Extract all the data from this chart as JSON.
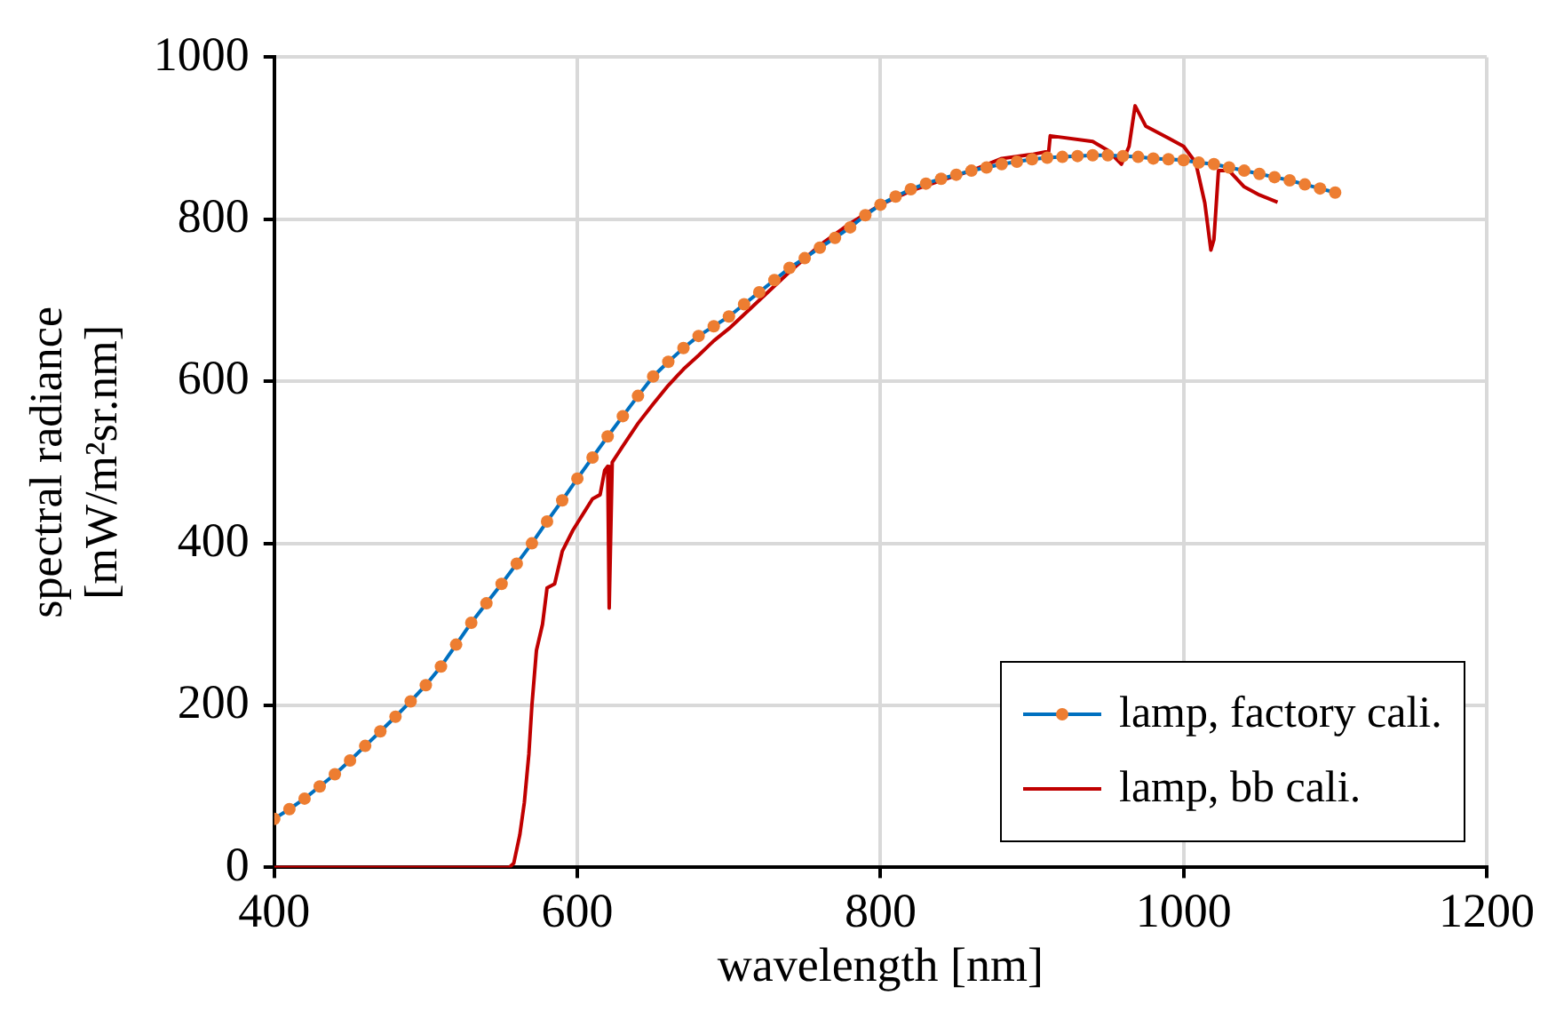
{
  "chart_data": {
    "type": "line",
    "xlabel": "wavelength [nm]",
    "ylabel": "spectral radiance\n[mW/m²sr.nm]",
    "xlim": [
      400,
      1200
    ],
    "xticks": [
      400,
      600,
      800,
      1000,
      1200
    ],
    "ylim": [
      0,
      1000
    ],
    "yticks": [
      0,
      200,
      400,
      600,
      800,
      1000
    ],
    "grid": true,
    "legend": "bottom right",
    "series": [
      {
        "name": "lamp, factory cali.",
        "marker": "circle",
        "color": "#0070c0",
        "colors": [
          "#ed7d31",
          "#ed7d31",
          "#ed7d31",
          "#ed7d31",
          "#ed7d31",
          "#ed7d31",
          "#ed7d31",
          "#ed7d31",
          "#ed7d31",
          "#ed7d31",
          "#ed7d31",
          "#ed7d31",
          "#ed7d31",
          "#ed7d31",
          "#ed7d31",
          "#ed7d31",
          "#ed7d31",
          "#ed7d31",
          "#ed7d31",
          "#ed7d31",
          "#ed7d31",
          "#ed7d31",
          "#ed7d31",
          "#ed7d31",
          "#ed7d31",
          "#ed7d31",
          "#ed7d31",
          "#ed7d31",
          "#ed7d31",
          "#ed7d31",
          "#ed7d31",
          "#ed7d31",
          "#ed7d31",
          "#ed7d31",
          "#ed7d31",
          "#ed7d31",
          "#ed7d31",
          "#ed7d31",
          "#ed7d31",
          "#ed7d31",
          "#ed7d31",
          "#ed7d31",
          "#ed7d31",
          "#ed7d31",
          "#ed7d31",
          "#ed7d31",
          "#ed7d31",
          "#ed7d31",
          "#ed7d31",
          "#ed7d31",
          "#ed7d31",
          "#ed7d31",
          "#ed7d31",
          "#ed7d31",
          "#ed7d31",
          "#ed7d31",
          "#ed7d31",
          "#ed7d31",
          "#ed7d31",
          "#ed7d31",
          "#ed7d31",
          "#ed7d31",
          "#ed7d31",
          "#ed7d31",
          "#ed7d31",
          "#ed7d31",
          "#ed7d31",
          "#ed7d31",
          "#ed7d31",
          "#ed7d31",
          "#ed7d31"
        ],
        "x": [
          400,
          410,
          420,
          430,
          440,
          450,
          460,
          470,
          480,
          490,
          500,
          510,
          520,
          530,
          540,
          550,
          560,
          570,
          580,
          590,
          600,
          610,
          620,
          630,
          640,
          650,
          660,
          670,
          680,
          690,
          700,
          710,
          720,
          730,
          740,
          750,
          760,
          770,
          780,
          790,
          800,
          810,
          820,
          830,
          840,
          850,
          860,
          870,
          880,
          890,
          900,
          910,
          920,
          930,
          940,
          950,
          960,
          970,
          980,
          990,
          1000,
          1010,
          1020,
          1030,
          1040,
          1050,
          1060,
          1070,
          1080,
          1090,
          1100
        ],
        "values": [
          60,
          72,
          85,
          100,
          115,
          132,
          150,
          168,
          186,
          205,
          225,
          248,
          275,
          302,
          326,
          350,
          375,
          400,
          427,
          453,
          480,
          506,
          532,
          557,
          582,
          606,
          624,
          641,
          656,
          668,
          680,
          695,
          710,
          725,
          740,
          752,
          765,
          777,
          790,
          805,
          818,
          828,
          837,
          844,
          850,
          855,
          860,
          864,
          868,
          871,
          874,
          876,
          877,
          878,
          879,
          879,
          878,
          877,
          875,
          874,
          873,
          870,
          868,
          864,
          860,
          856,
          852,
          848,
          843,
          838,
          833
        ]
      },
      {
        "name": "lamp, bb cali.",
        "marker": "none",
        "color": "#c00000",
        "x": [
          400,
          555,
          558,
          562,
          565,
          568,
          570,
          573,
          577,
          580,
          585,
          590,
          597,
          600,
          605,
          610,
          615,
          618,
          620,
          621,
          623,
          630,
          640,
          650,
          660,
          670,
          680,
          690,
          700,
          720,
          740,
          760,
          780,
          800,
          820,
          840,
          860,
          880,
          900,
          911,
          912,
          940,
          950,
          959,
          964,
          968,
          975,
          990,
          1000,
          1008,
          1014,
          1018,
          1020,
          1023,
          1030,
          1040,
          1050,
          1062
        ],
        "values": [
          0,
          0,
          5,
          40,
          80,
          140,
          200,
          268,
          300,
          345,
          350,
          390,
          416,
          425,
          440,
          455,
          460,
          490,
          495,
          320,
          500,
          520,
          548,
          572,
          595,
          615,
          632,
          650,
          665,
          700,
          735,
          768,
          795,
          818,
          835,
          848,
          860,
          875,
          880,
          884,
          903,
          896,
          885,
          868,
          890,
          940,
          915,
          900,
          890,
          870,
          820,
          762,
          775,
          860,
          860,
          840,
          830,
          821
        ]
      }
    ]
  }
}
